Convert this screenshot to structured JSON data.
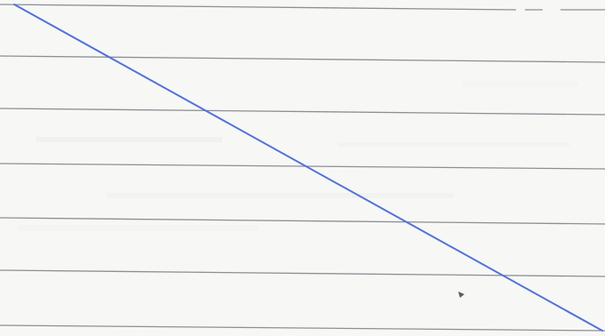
{
  "paper": {
    "background_color": "#f7f7f6",
    "rule_color": "#8d8f95",
    "rule_count": 7
  },
  "diagonal_line": {
    "color": "#4f74d8"
  }
}
